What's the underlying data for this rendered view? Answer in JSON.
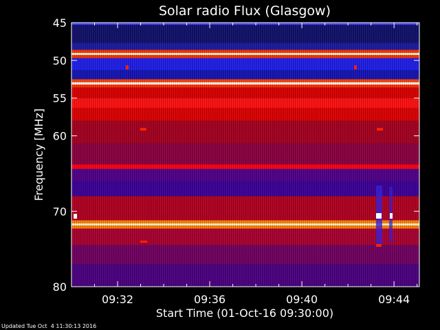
{
  "chart_data": {
    "type": "heatmap",
    "title": "Solar radio Flux (Glasgow)",
    "xlabel": "Start Time (01-Oct-16 09:30:00)",
    "ylabel": "Frequency [MHz]",
    "x_unit": "minutes after 09:30:00",
    "xlim": [
      0,
      15.1
    ],
    "ylim": [
      45,
      80
    ],
    "y_inverted": true,
    "x_ticks": [
      {
        "value": 2,
        "label": "09:32"
      },
      {
        "value": 6,
        "label": "09:36"
      },
      {
        "value": 10,
        "label": "09:40"
      },
      {
        "value": 14,
        "label": "09:44"
      }
    ],
    "y_ticks": [
      {
        "value": 45,
        "label": "45"
      },
      {
        "value": 50,
        "label": "50"
      },
      {
        "value": 55,
        "label": "55"
      },
      {
        "value": 60,
        "label": "60"
      },
      {
        "value": 70,
        "label": "70"
      },
      {
        "value": 80,
        "label": "80"
      }
    ],
    "colormap": [
      "#000080",
      "#2020ff",
      "#8000a0",
      "#c00020",
      "#ff0000",
      "#ff8000",
      "#ffffff"
    ],
    "frequency_bands": [
      {
        "from": 45.0,
        "to": 45.3,
        "color": "#4040ff"
      },
      {
        "from": 45.3,
        "to": 47.7,
        "color": "#10106a"
      },
      {
        "from": 47.7,
        "to": 48.6,
        "color": "#1a1aa0"
      },
      {
        "from": 48.6,
        "to": 49.0,
        "color": "#ff3000"
      },
      {
        "from": 49.0,
        "to": 49.3,
        "color": "#fff0c0"
      },
      {
        "from": 49.3,
        "to": 49.7,
        "color": "#ff3000"
      },
      {
        "from": 49.7,
        "to": 51.3,
        "color": "#1e1ee8"
      },
      {
        "from": 51.3,
        "to": 52.5,
        "color": "#1414b4"
      },
      {
        "from": 52.5,
        "to": 52.9,
        "color": "#ff4000"
      },
      {
        "from": 52.9,
        "to": 53.2,
        "color": "#ffffff"
      },
      {
        "from": 53.2,
        "to": 53.6,
        "color": "#ff3000"
      },
      {
        "from": 53.6,
        "to": 55.0,
        "color": "#d80000"
      },
      {
        "from": 55.0,
        "to": 56.3,
        "color": "#ff1010"
      },
      {
        "from": 56.3,
        "to": 58.0,
        "color": "#dc0000"
      },
      {
        "from": 58.0,
        "to": 61.0,
        "color": "#a40020"
      },
      {
        "from": 61.0,
        "to": 62.5,
        "color": "#8a0040"
      },
      {
        "from": 62.5,
        "to": 63.8,
        "color": "#8a0040"
      },
      {
        "from": 63.8,
        "to": 64.4,
        "color": "#ff0010"
      },
      {
        "from": 64.4,
        "to": 66.0,
        "color": "#500088"
      },
      {
        "from": 66.0,
        "to": 68.0,
        "color": "#3c0096"
      },
      {
        "from": 68.0,
        "to": 71.2,
        "color": "#b00020"
      },
      {
        "from": 71.2,
        "to": 71.6,
        "color": "#ff8000"
      },
      {
        "from": 71.6,
        "to": 71.9,
        "color": "#fff0c0"
      },
      {
        "from": 71.9,
        "to": 72.3,
        "color": "#ff8000"
      },
      {
        "from": 72.3,
        "to": 74.5,
        "color": "#a80030"
      },
      {
        "from": 74.5,
        "to": 77.0,
        "color": "#700060"
      },
      {
        "from": 77.0,
        "to": 80.0,
        "color": "#4a0080"
      }
    ]
  },
  "footer": {
    "updated": "Updated Tue Oct  4 11:30:13 2016"
  }
}
